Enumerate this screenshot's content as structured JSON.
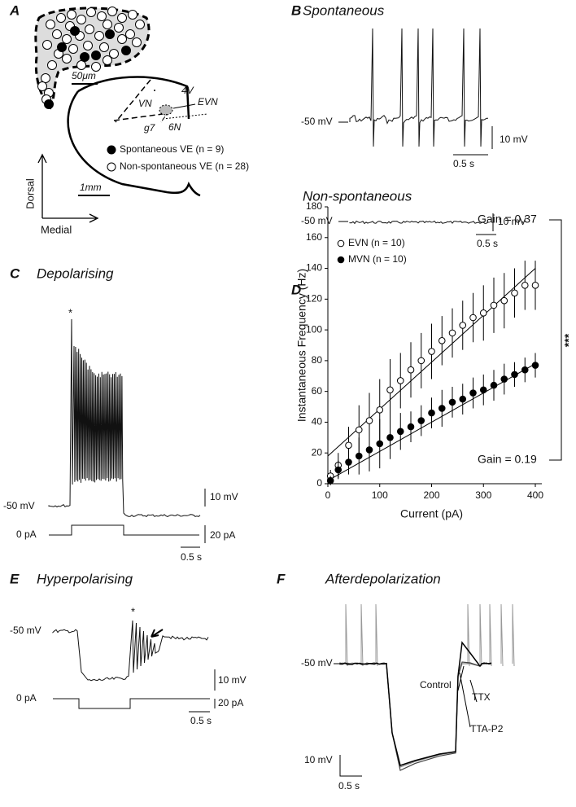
{
  "panels": {
    "a": {
      "label": "A",
      "scale_bar_small": "50μm",
      "regions": {
        "vn": "VN",
        "v4": "4V",
        "evn": "EVN",
        "g7": "g7",
        "n6": "6N"
      },
      "legend": [
        "Spontaneous VE (n = 9)",
        "Non-spontaneous VE (n = 28)"
      ],
      "scale_bar_large": "1mm",
      "axis_dorsal": "Dorsal",
      "axis_medial": "Medial"
    },
    "b": {
      "label": "B",
      "title_top": "Spontaneous",
      "vm_top": "-50 mV",
      "v_scale_top": "10 mV",
      "t_scale_top": "0.5 s",
      "title_bottom": "Non-spontaneous",
      "vm_bottom": "-50 mV",
      "v_scale_bottom": "10 mV",
      "t_scale_bottom": "0.5 s"
    },
    "c": {
      "label": "C",
      "title": "Depolarising",
      "star": "*",
      "vm": "-50 mV",
      "v_scale": "10 mV",
      "i_base": "0 pA",
      "i_scale": "20 pA",
      "t_scale": "0.5 s"
    },
    "e": {
      "label": "E",
      "title": "Hyperpolarising",
      "star": "*",
      "vm": "-50 mV",
      "v_scale": "10 mV",
      "i_base": "0 pA",
      "i_scale": "20 pA",
      "t_scale": "0.5 s"
    },
    "f": {
      "label": "F",
      "title": "Afterdepolarization",
      "control": "Control",
      "ttx": "TTX",
      "tta": "TTA-P2",
      "vm": "-50 mV",
      "v_scale": "10 mV",
      "t_scale": "0.5 s"
    }
  },
  "chart_data": {
    "type": "scatter",
    "panel_label": "D",
    "x_label": "Current (pA)",
    "y_label": "Instantaneous Frequency (Hz)",
    "x": [
      5,
      20,
      40,
      60,
      80,
      100,
      120,
      140,
      160,
      180,
      200,
      220,
      240,
      260,
      280,
      300,
      320,
      340,
      360,
      380,
      400
    ],
    "series": [
      {
        "name": "EVN (n = 10)",
        "color": "#ffffff",
        "values": [
          5,
          12,
          25,
          35,
          41,
          48,
          61,
          67,
          74,
          80,
          86,
          93,
          98,
          103,
          108,
          111,
          116,
          119,
          124,
          129,
          129
        ],
        "errors": [
          4,
          8,
          12,
          16,
          18,
          20,
          20,
          18,
          18,
          18,
          18,
          16,
          16,
          16,
          16,
          18,
          18,
          18,
          16,
          16,
          16
        ],
        "fit_line": [
          18,
          140
        ]
      },
      {
        "name": "MVN (n = 10)",
        "color": "#000000",
        "values": [
          2,
          9,
          14,
          18,
          22,
          26,
          30,
          34,
          37,
          41,
          46,
          49,
          53,
          55,
          59,
          61,
          64,
          68,
          71,
          74,
          77
        ],
        "errors": [
          3,
          6,
          8,
          12,
          14,
          16,
          14,
          12,
          10,
          10,
          10,
          12,
          10,
          10,
          10,
          10,
          10,
          10,
          8,
          8,
          8
        ],
        "fit_line": [
          2,
          78
        ]
      }
    ],
    "annotations": [
      "Gain = 0.37",
      "Gain = 0.19",
      "***"
    ],
    "xlim": [
      0,
      400
    ],
    "ylim": [
      0,
      180
    ],
    "xticks": [
      0,
      100,
      200,
      300,
      400
    ],
    "yticks": [
      0,
      20,
      40,
      60,
      80,
      100,
      120,
      140,
      160,
      180
    ]
  }
}
